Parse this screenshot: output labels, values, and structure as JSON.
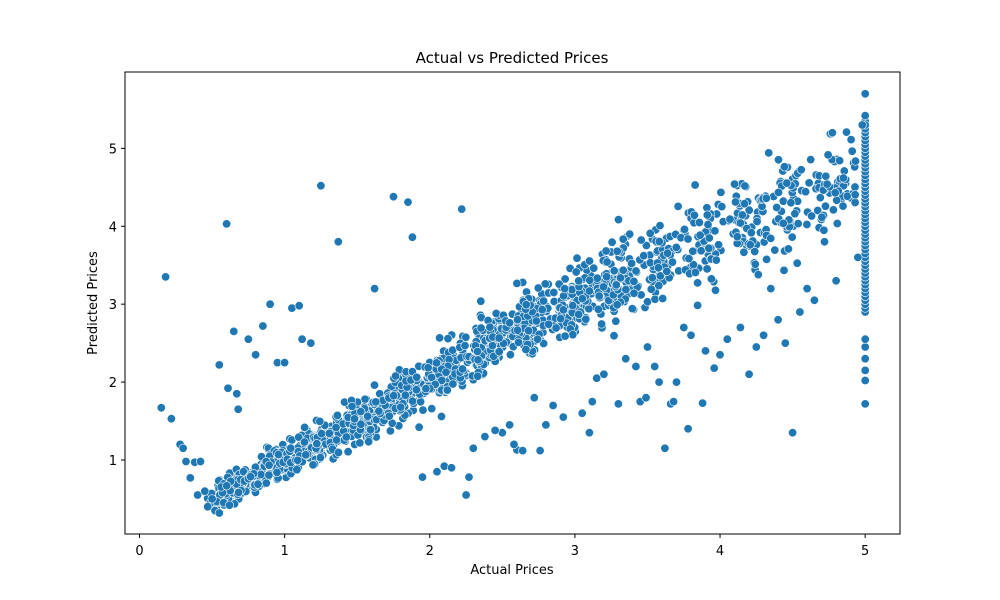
{
  "chart_data": {
    "type": "scatter",
    "title": "Actual vs Predicted Prices",
    "xlabel": "Actual Prices",
    "ylabel": "Predicted Prices",
    "xlim": [
      -0.1,
      5.24
    ],
    "ylim": [
      0.05,
      5.98
    ],
    "xticks": [
      0,
      1,
      2,
      3,
      4,
      5
    ],
    "yticks": [
      1,
      2,
      3,
      4,
      5
    ],
    "grid": false,
    "colors": {
      "marker": "#1f77b4",
      "marker_edge": "#ffffff"
    },
    "series": [
      {
        "x": [
          0.15,
          0.18,
          0.22,
          0.28,
          0.3,
          0.32,
          0.35,
          0.38,
          0.4,
          0.42,
          0.45,
          0.47,
          0.5,
          0.52,
          0.55,
          0.58,
          0.6,
          0.62,
          0.65,
          0.67,
          0.55,
          0.61,
          0.68,
          0.75,
          0.8,
          0.85,
          0.9,
          0.95,
          1.0,
          1.05,
          1.1,
          1.12,
          1.18,
          1.25,
          1.37,
          1.62,
          1.75,
          1.85,
          1.88,
          2.22,
          2.25,
          2.27,
          2.3,
          2.38,
          2.5,
          2.6,
          2.64,
          2.76,
          3.1,
          3.12,
          3.3,
          3.45,
          3.49,
          3.62,
          3.66,
          3.68,
          3.78,
          3.88,
          3.96,
          4.0,
          4.14,
          4.45,
          4.5,
          4.6,
          4.72,
          4.85,
          4.95,
          4.98,
          1.95,
          2.1,
          2.15,
          2.45,
          2.58,
          2.72,
          2.8,
          2.85,
          2.92,
          3.05,
          3.2,
          3.35,
          3.5,
          3.55,
          3.7,
          3.8,
          3.9,
          4.05,
          4.2,
          4.3,
          4.4,
          4.55,
          4.65,
          4.8,
          2.05,
          2.55,
          3.15,
          3.42,
          3.58,
          3.75,
          4.25,
          4.35
        ],
        "y": [
          1.67,
          3.35,
          1.53,
          1.2,
          1.15,
          0.98,
          0.77,
          0.97,
          0.55,
          0.98,
          0.6,
          0.4,
          0.5,
          0.35,
          0.32,
          0.45,
          4.03,
          0.42,
          2.65,
          1.85,
          2.22,
          1.92,
          1.65,
          2.55,
          2.35,
          2.72,
          3.0,
          2.25,
          2.25,
          2.95,
          2.98,
          2.55,
          2.5,
          4.52,
          3.8,
          3.2,
          4.38,
          4.31,
          3.86,
          4.22,
          0.55,
          0.78,
          1.15,
          1.3,
          1.35,
          1.13,
          1.12,
          1.12,
          1.35,
          1.75,
          1.72,
          1.75,
          1.8,
          1.15,
          1.72,
          1.75,
          1.4,
          1.73,
          2.18,
          2.35,
          2.7,
          2.5,
          1.35,
          3.2,
          3.8,
          4.62,
          3.6,
          5.3,
          0.78,
          0.92,
          0.9,
          1.38,
          1.2,
          1.8,
          1.45,
          1.7,
          1.55,
          1.6,
          2.1,
          2.3,
          2.45,
          2.2,
          2.0,
          2.6,
          2.4,
          2.55,
          2.1,
          2.6,
          2.8,
          2.9,
          3.05,
          3.3,
          0.85,
          1.45,
          2.05,
          2.2,
          2.0,
          2.7,
          2.45,
          3.2
        ]
      },
      {
        "cluster_centers": [
          [
            0.65,
            0.65
          ],
          [
            0.9,
            0.9
          ],
          [
            1.2,
            1.2
          ],
          [
            1.5,
            1.5
          ],
          [
            1.8,
            1.8
          ],
          [
            2.1,
            2.1
          ],
          [
            2.4,
            2.5
          ],
          [
            2.7,
            2.8
          ],
          [
            3.0,
            3.0
          ],
          [
            3.3,
            3.3
          ],
          [
            3.6,
            3.6
          ],
          [
            3.9,
            3.8
          ],
          [
            4.2,
            4.1
          ],
          [
            4.5,
            4.3
          ],
          [
            4.8,
            4.5
          ]
        ],
        "x_cap": 5.0,
        "y_at_cap": [
          1.72,
          2.02,
          2.15,
          2.3,
          2.45,
          2.55,
          2.95,
          3.05,
          3.15,
          3.3,
          3.45,
          3.6,
          3.75,
          3.85,
          3.95,
          4.05,
          4.15,
          4.25,
          4.35,
          4.45,
          4.55,
          4.65,
          4.75,
          4.85,
          4.95,
          5.05,
          5.15,
          5.25,
          5.35,
          5.42,
          5.7
        ]
      }
    ]
  }
}
